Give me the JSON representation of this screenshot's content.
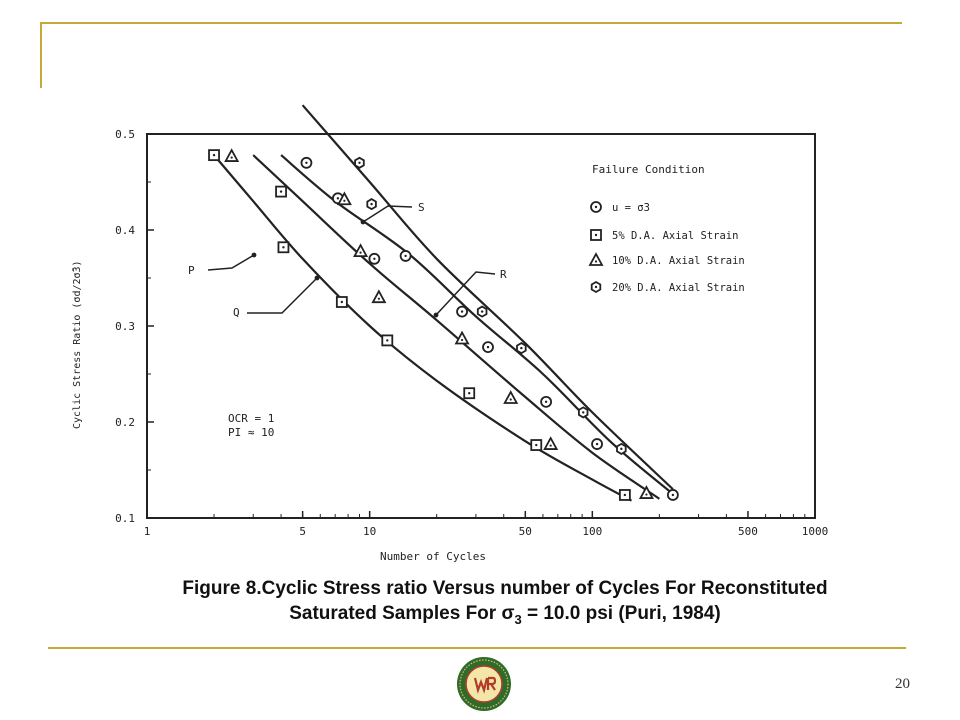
{
  "caption": {
    "line1": "Figure 8.Cyclic Stress ratio Versus number of Cycles For Reconstituted",
    "line2_pre": "Saturated Samples For σ",
    "line2_sub": "3",
    "line2_post": " = 10.0 psi (Puri, 1984)"
  },
  "page_number": "20",
  "colors": {
    "accent": "#c8a937",
    "ink": "#222222"
  },
  "chart_data": {
    "type": "scatter",
    "x_scale": "log",
    "xlim": [
      1,
      1000
    ],
    "ylim": [
      0.1,
      0.5
    ],
    "xlabel": "Number of Cycles",
    "ylabel": "Cyclic Stress Ratio (σd/2σ̄3)",
    "x_ticks": [
      {
        "value": 1,
        "label": "1"
      },
      {
        "value": 5,
        "label": "5"
      },
      {
        "value": 10,
        "label": "10"
      },
      {
        "value": 50,
        "label": "50"
      },
      {
        "value": 100,
        "label": "100"
      },
      {
        "value": 500,
        "label": "500"
      },
      {
        "value": 1000,
        "label": "1000"
      }
    ],
    "y_ticks": [
      {
        "value": 0.1,
        "label": "0.1"
      },
      {
        "value": 0.2,
        "label": "0.2"
      },
      {
        "value": 0.3,
        "label": "0.3"
      },
      {
        "value": 0.4,
        "label": "0.4"
      },
      {
        "value": 0.5,
        "label": "0.5"
      }
    ],
    "legend": {
      "title": "Failure Condition",
      "placement": "top-right",
      "items": [
        {
          "marker": "circle",
          "label": "u = σ̄3"
        },
        {
          "marker": "square",
          "label": "5% D.A. Axial Strain"
        },
        {
          "marker": "triangle",
          "label": "10% D.A. Axial Strain"
        },
        {
          "marker": "hexagon",
          "label": "20% D.A. Axial Strain"
        }
      ]
    },
    "annotations": [
      {
        "text": "OCR = 1"
      },
      {
        "text": "PI ≈ 10"
      }
    ],
    "curves": [
      {
        "label": "P",
        "points": [
          [
            2.0,
            0.478
          ],
          [
            3.0,
            0.43
          ],
          [
            5.0,
            0.37
          ],
          [
            10.0,
            0.3
          ],
          [
            20.0,
            0.243
          ],
          [
            50.0,
            0.18
          ],
          [
            100.0,
            0.14
          ],
          [
            150.0,
            0.118
          ]
        ]
      },
      {
        "label": "Q",
        "points": [
          [
            3.0,
            0.478
          ],
          [
            5.0,
            0.43
          ],
          [
            10.0,
            0.365
          ],
          [
            20.0,
            0.306
          ],
          [
            50.0,
            0.226
          ],
          [
            100.0,
            0.168
          ],
          [
            200.0,
            0.12
          ]
        ]
      },
      {
        "label": "R",
        "points": [
          [
            4.0,
            0.478
          ],
          [
            7.0,
            0.43
          ],
          [
            15.0,
            0.375
          ],
          [
            30.0,
            0.31
          ],
          [
            60.0,
            0.25
          ],
          [
            120.0,
            0.18
          ],
          [
            230.0,
            0.125
          ]
        ]
      },
      {
        "label": "S",
        "points": [
          [
            5.0,
            0.53
          ],
          [
            10.0,
            0.45
          ],
          [
            20.0,
            0.37
          ],
          [
            50.0,
            0.282
          ],
          [
            100.0,
            0.21
          ],
          [
            230.0,
            0.13
          ]
        ]
      }
    ],
    "series": [
      {
        "marker": "circle",
        "points": [
          [
            5.2,
            0.47
          ],
          [
            7.2,
            0.433
          ],
          [
            10.5,
            0.37
          ],
          [
            14.5,
            0.373
          ],
          [
            26.0,
            0.315
          ],
          [
            34.0,
            0.278
          ],
          [
            62.0,
            0.221
          ],
          [
            105.0,
            0.177
          ],
          [
            230.0,
            0.124
          ]
        ]
      },
      {
        "marker": "square",
        "points": [
          [
            2.0,
            0.478
          ],
          [
            4.0,
            0.44
          ],
          [
            4.1,
            0.382
          ],
          [
            7.5,
            0.325
          ],
          [
            12.0,
            0.285
          ],
          [
            28.0,
            0.23
          ],
          [
            56.0,
            0.176
          ],
          [
            140.0,
            0.124
          ]
        ]
      },
      {
        "marker": "triangle",
        "points": [
          [
            2.4,
            0.477
          ],
          [
            7.7,
            0.432
          ],
          [
            9.1,
            0.378
          ],
          [
            11.0,
            0.33
          ],
          [
            26.0,
            0.287
          ],
          [
            43.0,
            0.225
          ],
          [
            65.0,
            0.177
          ],
          [
            175.0,
            0.126
          ]
        ]
      },
      {
        "marker": "hexagon",
        "points": [
          [
            9.0,
            0.47
          ],
          [
            10.2,
            0.427
          ],
          [
            32.0,
            0.315
          ],
          [
            48.0,
            0.277
          ],
          [
            91.0,
            0.21
          ],
          [
            135.0,
            0.172
          ]
        ]
      }
    ]
  }
}
